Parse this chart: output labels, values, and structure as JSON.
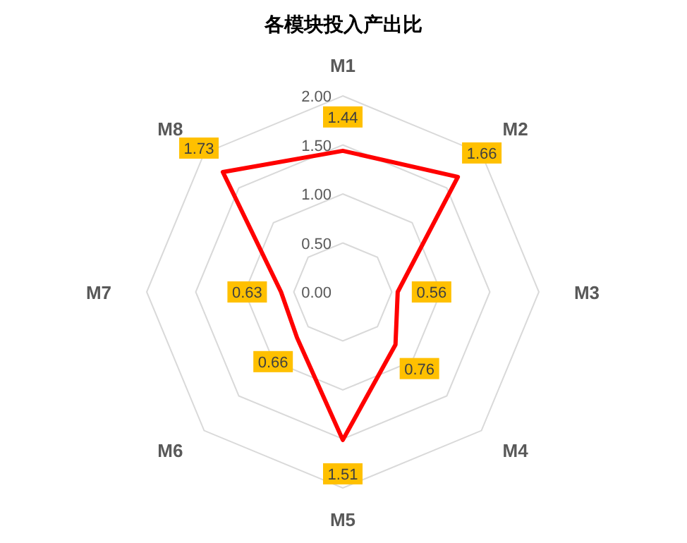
{
  "chart_data": {
    "type": "radar",
    "title": "各模块投入产出比",
    "categories": [
      "M1",
      "M2",
      "M3",
      "M4",
      "M5",
      "M6",
      "M7",
      "M8"
    ],
    "series": [
      {
        "color": "#ff0000",
        "values": [
          1.44,
          1.66,
          0.56,
          0.76,
          1.51,
          0.66,
          0.63,
          1.73
        ]
      }
    ],
    "ylim": [
      0,
      2
    ],
    "yticks": [
      {
        "value": 0,
        "label": "0.00"
      },
      {
        "value": 0.5,
        "label": "0.50"
      },
      {
        "value": 1,
        "label": "1.00"
      },
      {
        "value": 1.5,
        "label": "1.50"
      },
      {
        "value": 2,
        "label": "2.00"
      }
    ],
    "data_labels": true,
    "grid": true
  }
}
